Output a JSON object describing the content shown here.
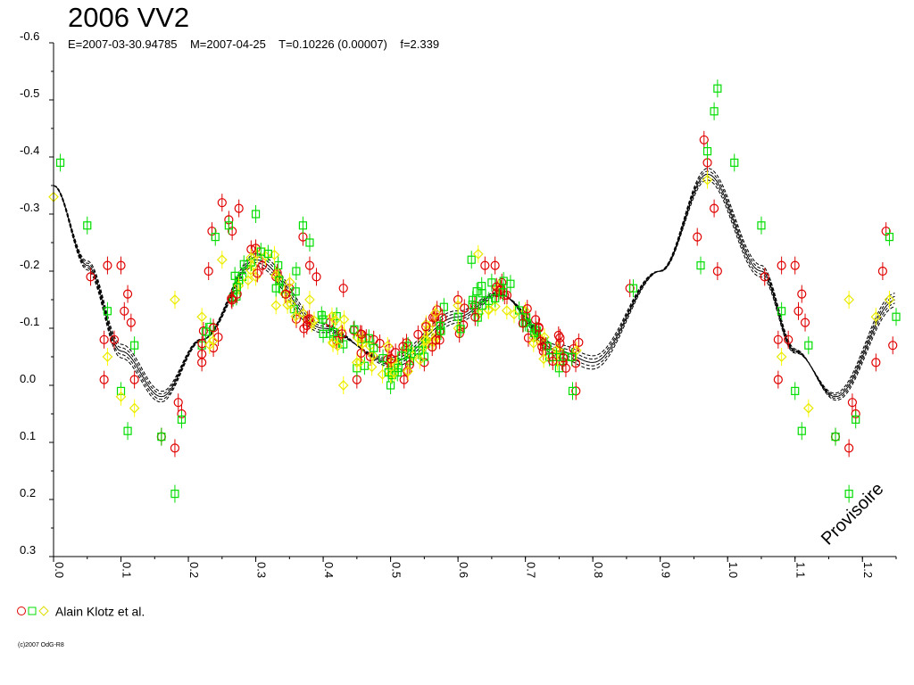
{
  "chart_data": {
    "type": "scatter",
    "title": "2006 VV2",
    "subtitle": "E=2007-03-30.94785    M=2007-04-25    T=0.10226 (0.00007)    f=2.339",
    "xlabel": "",
    "ylabel": "",
    "xlim": [
      0.0,
      1.25
    ],
    "ylim": [
      0.3,
      -0.6
    ],
    "y_inverted": true,
    "x_ticks": [
      "0.0",
      "0.1",
      "0.2",
      "0.3",
      "0.4",
      "0.5",
      "0.6",
      "0.7",
      "0.8",
      "0.9",
      "1.0",
      "1.1",
      "1.2"
    ],
    "y_ticks": [
      "-0.6",
      "-0.5",
      "-0.4",
      "-0.3",
      "-0.2",
      "-0.1",
      "0.0",
      "0.1",
      "0.2",
      "0.3"
    ],
    "watermark": "Provisoire",
    "legend_label": "Alain Klotz et al.",
    "legend_placement": "bottom-left",
    "credit": "(c)2007 OdG-R8",
    "colors": {
      "red": "#e00000",
      "green": "#00dd00",
      "yellow": "#ffff00",
      "curve": "#000000"
    },
    "fit_curve": {
      "description_points": [
        [
          0.0,
          -0.35
        ],
        [
          0.05,
          -0.21
        ],
        [
          0.1,
          -0.06
        ],
        [
          0.16,
          0.02
        ],
        [
          0.22,
          -0.08
        ],
        [
          0.3,
          -0.22
        ],
        [
          0.4,
          -0.1
        ],
        [
          0.5,
          -0.04
        ],
        [
          0.6,
          -0.12
        ],
        [
          0.66,
          -0.16
        ],
        [
          0.75,
          -0.06
        ],
        [
          0.8,
          -0.04
        ],
        [
          0.9,
          -0.2
        ],
        [
          0.97,
          -0.37
        ],
        [
          1.05,
          -0.2
        ],
        [
          1.1,
          -0.06
        ],
        [
          1.16,
          0.02
        ],
        [
          1.25,
          -0.15
        ]
      ]
    },
    "series": [
      {
        "name": "Alain Klotz et al.",
        "marker": "circle",
        "color": "#e00000",
        "points": [
          [
            0.055,
            -0.19
          ],
          [
            0.075,
            -0.08
          ],
          [
            0.08,
            -0.21
          ],
          [
            0.09,
            -0.08
          ],
          [
            0.1,
            -0.21
          ],
          [
            0.105,
            -0.13
          ],
          [
            0.11,
            -0.16
          ],
          [
            0.115,
            -0.11
          ],
          [
            0.12,
            -0.01
          ],
          [
            0.075,
            -0.01
          ],
          [
            0.16,
            0.09
          ],
          [
            0.18,
            0.11
          ],
          [
            0.185,
            0.03
          ],
          [
            0.19,
            0.05
          ],
          [
            0.22,
            -0.04
          ],
          [
            0.23,
            -0.2
          ],
          [
            0.235,
            -0.27
          ],
          [
            0.25,
            -0.32
          ],
          [
            0.26,
            -0.29
          ],
          [
            0.265,
            -0.27
          ],
          [
            0.275,
            -0.31
          ],
          [
            0.3,
            -0.24
          ],
          [
            0.31,
            -0.21
          ],
          [
            0.33,
            -0.19
          ],
          [
            0.35,
            -0.17
          ],
          [
            0.37,
            -0.26
          ],
          [
            0.38,
            -0.21
          ],
          [
            0.39,
            -0.19
          ],
          [
            0.41,
            -0.11
          ],
          [
            0.43,
            -0.17
          ],
          [
            0.45,
            -0.01
          ],
          [
            0.47,
            -0.05
          ],
          [
            0.475,
            -0.08
          ],
          [
            0.5,
            -0.04
          ],
          [
            0.52,
            -0.01
          ],
          [
            0.55,
            -0.04
          ],
          [
            0.6,
            -0.15
          ],
          [
            0.625,
            -0.14
          ],
          [
            0.64,
            -0.21
          ],
          [
            0.655,
            -0.21
          ],
          [
            0.665,
            -0.18
          ],
          [
            0.7,
            -0.12
          ],
          [
            0.72,
            -0.1
          ],
          [
            0.74,
            -0.05
          ],
          [
            0.76,
            -0.03
          ],
          [
            0.775,
            0.01
          ],
          [
            0.855,
            -0.17
          ],
          [
            0.955,
            -0.26
          ],
          [
            0.965,
            -0.43
          ],
          [
            0.97,
            -0.39
          ],
          [
            0.98,
            -0.31
          ],
          [
            0.985,
            -0.2
          ],
          [
            1.055,
            -0.19
          ],
          [
            1.075,
            -0.08
          ],
          [
            1.08,
            -0.21
          ],
          [
            1.09,
            -0.08
          ],
          [
            1.1,
            -0.21
          ],
          [
            1.105,
            -0.13
          ],
          [
            1.11,
            -0.16
          ],
          [
            1.115,
            -0.11
          ],
          [
            1.075,
            -0.01
          ],
          [
            1.16,
            0.09
          ],
          [
            1.18,
            0.11
          ],
          [
            1.185,
            0.03
          ],
          [
            1.19,
            0.05
          ],
          [
            1.22,
            -0.04
          ],
          [
            1.23,
            -0.2
          ],
          [
            1.235,
            -0.27
          ],
          [
            1.245,
            -0.07
          ]
        ]
      },
      {
        "name": "",
        "marker": "square",
        "color": "#00dd00",
        "points": [
          [
            0.01,
            -0.39
          ],
          [
            0.05,
            -0.28
          ],
          [
            0.08,
            -0.13
          ],
          [
            0.1,
            0.01
          ],
          [
            0.11,
            0.08
          ],
          [
            0.12,
            -0.07
          ],
          [
            0.16,
            0.09
          ],
          [
            0.18,
            0.19
          ],
          [
            0.19,
            0.06
          ],
          [
            0.22,
            -0.07
          ],
          [
            0.24,
            -0.26
          ],
          [
            0.26,
            -0.28
          ],
          [
            0.28,
            -0.19
          ],
          [
            0.3,
            -0.3
          ],
          [
            0.33,
            -0.17
          ],
          [
            0.36,
            -0.2
          ],
          [
            0.37,
            -0.28
          ],
          [
            0.38,
            -0.25
          ],
          [
            0.4,
            -0.09
          ],
          [
            0.45,
            -0.03
          ],
          [
            0.5,
            0.0
          ],
          [
            0.55,
            -0.05
          ],
          [
            0.6,
            -0.12
          ],
          [
            0.62,
            -0.22
          ],
          [
            0.65,
            -0.18
          ],
          [
            0.7,
            -0.11
          ],
          [
            0.75,
            -0.03
          ],
          [
            0.77,
            0.01
          ],
          [
            0.86,
            -0.17
          ],
          [
            0.96,
            -0.21
          ],
          [
            0.97,
            -0.41
          ],
          [
            0.98,
            -0.48
          ],
          [
            0.985,
            -0.52
          ],
          [
            1.01,
            -0.39
          ],
          [
            1.05,
            -0.28
          ],
          [
            1.08,
            -0.13
          ],
          [
            1.1,
            0.01
          ],
          [
            1.11,
            0.08
          ],
          [
            1.12,
            -0.07
          ],
          [
            1.16,
            0.09
          ],
          [
            1.18,
            0.19
          ],
          [
            1.19,
            0.06
          ],
          [
            1.24,
            -0.26
          ],
          [
            1.25,
            -0.12
          ]
        ]
      },
      {
        "name": "",
        "marker": "diamond",
        "color": "#ffff00",
        "points": [
          [
            0.0,
            -0.33
          ],
          [
            0.08,
            -0.05
          ],
          [
            0.1,
            0.02
          ],
          [
            0.12,
            0.04
          ],
          [
            0.18,
            -0.15
          ],
          [
            0.22,
            -0.12
          ],
          [
            0.25,
            -0.22
          ],
          [
            0.3,
            -0.19
          ],
          [
            0.33,
            -0.14
          ],
          [
            0.38,
            -0.15
          ],
          [
            0.43,
            0.0
          ],
          [
            0.45,
            -0.04
          ],
          [
            0.5,
            -0.02
          ],
          [
            0.55,
            -0.08
          ],
          [
            0.6,
            -0.14
          ],
          [
            0.63,
            -0.23
          ],
          [
            0.66,
            -0.17
          ],
          [
            0.7,
            -0.13
          ],
          [
            0.75,
            -0.06
          ],
          [
            0.97,
            -0.36
          ],
          [
            1.08,
            -0.05
          ],
          [
            1.12,
            0.04
          ],
          [
            1.18,
            -0.15
          ],
          [
            1.22,
            -0.12
          ],
          [
            1.24,
            -0.15
          ]
        ]
      }
    ]
  }
}
